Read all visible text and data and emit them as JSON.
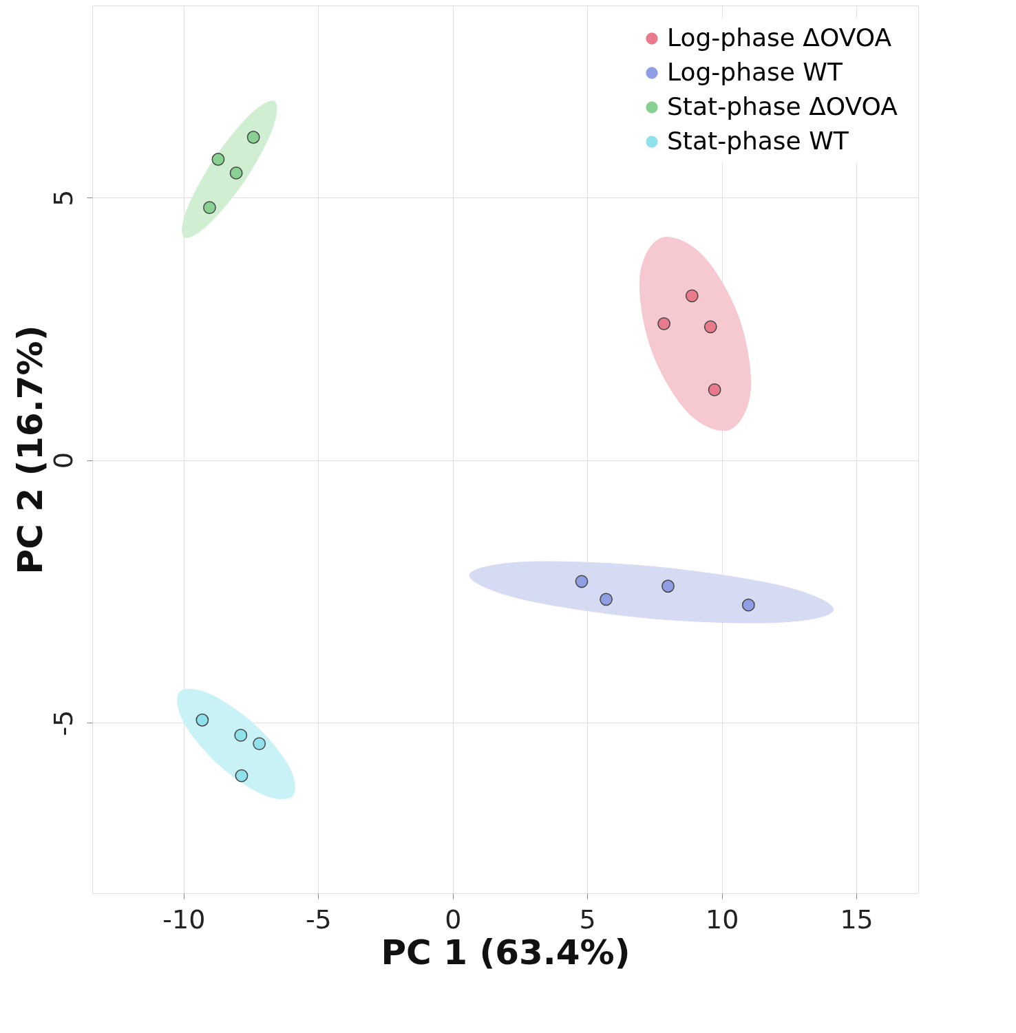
{
  "chart_data": {
    "type": "scatter",
    "xlabel": "PC 1 (63.4%)",
    "ylabel": "PC 2 (16.7%)",
    "xlim": [
      -13.4,
      17.3
    ],
    "ylim": [
      -8.25,
      8.66
    ],
    "xticks": [
      -10,
      -5,
      0,
      5,
      10,
      15
    ],
    "yticks": [
      {
        "value": -5,
        "label": "-5"
      },
      {
        "value": 0,
        "label": "0"
      },
      {
        "value": 5,
        "label": "5"
      }
    ],
    "grid": true,
    "legend": "top right",
    "marker": "circle",
    "series": [
      {
        "type": "area",
        "marker": "none",
        "color": "#f6c8d0",
        "x": [
          10.27,
          11.06,
          10.64,
          9.28,
          7.75,
          6.96,
          7.38,
          8.74
        ],
        "values": [
          0.58,
          1.32,
          2.7,
          3.9,
          4.23,
          3.49,
          2.11,
          0.91
        ]
      },
      {
        "type": "area",
        "marker": "none",
        "color": "#d6dbf4",
        "x": [
          14.15,
          12.1,
          7.28,
          2.52,
          0.62,
          2.67,
          7.48,
          12.25
        ],
        "values": [
          -2.85,
          -3.09,
          -3.01,
          -2.64,
          -2.19,
          -1.94,
          -2.03,
          -2.4
        ]
      },
      {
        "type": "area",
        "marker": "none",
        "color": "#cfeed2",
        "x": [
          -6.62,
          -6.72,
          -7.73,
          -9.09,
          -9.98,
          -9.88,
          -8.86,
          -7.51
        ],
        "values": [
          6.83,
          6.3,
          5.33,
          4.49,
          4.25,
          4.77,
          5.74,
          6.59
        ]
      },
      {
        "type": "area",
        "marker": "none",
        "color": "#c9f2f7",
        "x": [
          -5.95,
          -6.1,
          -7.38,
          -9.06,
          -10.15,
          -10.0,
          -8.72,
          -7.04
        ],
        "values": [
          -6.39,
          -5.83,
          -5.03,
          -4.45,
          -4.42,
          -4.99,
          -5.79,
          -6.37
        ]
      },
      {
        "type": "scatter",
        "name": "Log-phase ΔOVOA",
        "color": "#e97a8c",
        "x": [
          7.85,
          8.89,
          9.58,
          9.73
        ],
        "values": [
          2.6,
          3.13,
          2.54,
          1.34
        ]
      },
      {
        "type": "scatter",
        "name": "Log-phase WT",
        "color": "#8f9de2",
        "x": [
          4.79,
          5.7,
          8.0,
          10.99
        ],
        "values": [
          -2.31,
          -2.65,
          -2.4,
          -2.76
        ]
      },
      {
        "type": "scatter",
        "name": "Stat-phase ΔOVOA",
        "color": "#88d192",
        "x": [
          -9.04,
          -8.72,
          -8.05,
          -7.41
        ],
        "values": [
          4.81,
          5.73,
          5.47,
          6.15
        ]
      },
      {
        "type": "scatter",
        "name": "Stat-phase WT",
        "color": "#8fe1eb",
        "x": [
          -9.31,
          -7.88,
          -7.19,
          -7.85
        ],
        "values": [
          -4.95,
          -5.24,
          -5.4,
          -6.01
        ]
      }
    ]
  }
}
